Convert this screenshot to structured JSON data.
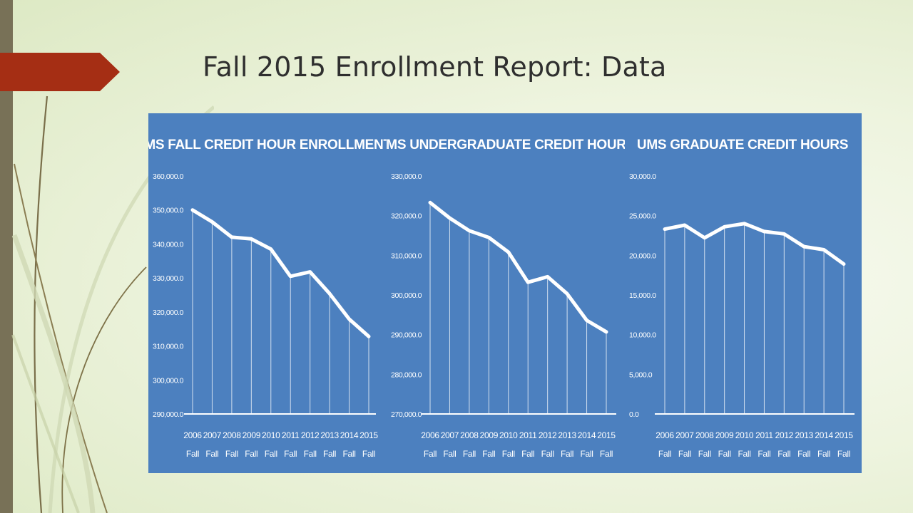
{
  "slide": {
    "title": "Fall 2015 Enrollment Report: Data"
  },
  "colors": {
    "accent": "#a52e14",
    "left_bar": "#787157",
    "panel_bg": "#4c80bf",
    "line": "#ffffff"
  },
  "chart_data": [
    {
      "type": "line",
      "title": "UMS FALL CREDIT HOUR ENROLLMENTS",
      "categories": [
        [
          "2006",
          "Fall"
        ],
        [
          "2007",
          "Fall"
        ],
        [
          "2008",
          "Fall"
        ],
        [
          "2009",
          "Fall"
        ],
        [
          "2010",
          "Fall"
        ],
        [
          "2011",
          "Fall"
        ],
        [
          "2012",
          "Fall"
        ],
        [
          "2013",
          "Fall"
        ],
        [
          "2014",
          "Fall"
        ],
        [
          "2015",
          "Fall"
        ]
      ],
      "values": [
        350000,
        346500,
        342000,
        341500,
        338500,
        330500,
        331800,
        325400,
        317900,
        312800
      ],
      "ylim": [
        290000,
        360000
      ],
      "yticks": [
        "360,000.0",
        "350,000.0",
        "340,000.0",
        "330,000.0",
        "320,000.0",
        "310,000.0",
        "300,000.0",
        "290,000.0"
      ],
      "drop_lines": true,
      "grid": false
    },
    {
      "type": "line",
      "title": "UMS UNDERGRADUATE CREDIT HOURS",
      "categories": [
        [
          "2006",
          "Fall"
        ],
        [
          "2007",
          "Fall"
        ],
        [
          "2008",
          "Fall"
        ],
        [
          "2009",
          "Fall"
        ],
        [
          "2010",
          "Fall"
        ],
        [
          "2011",
          "Fall"
        ],
        [
          "2012",
          "Fall"
        ],
        [
          "2013",
          "Fall"
        ],
        [
          "2014",
          "Fall"
        ],
        [
          "2015",
          "Fall"
        ]
      ],
      "values": [
        323300,
        319400,
        316200,
        314500,
        310800,
        303200,
        304600,
        300300,
        293600,
        290700
      ],
      "ylim": [
        270000,
        330000
      ],
      "yticks": [
        "330,000.0",
        "320,000.0",
        "310,000.0",
        "300,000.0",
        "290,000.0",
        "280,000.0",
        "270,000.0"
      ],
      "drop_lines": true,
      "grid": false
    },
    {
      "type": "line",
      "title": "UMS GRADUATE CREDIT HOURS",
      "categories": [
        [
          "2006",
          "Fall"
        ],
        [
          "2007",
          "Fall"
        ],
        [
          "2008",
          "Fall"
        ],
        [
          "2009",
          "Fall"
        ],
        [
          "2010",
          "Fall"
        ],
        [
          "2011",
          "Fall"
        ],
        [
          "2012",
          "Fall"
        ],
        [
          "2013",
          "Fall"
        ],
        [
          "2014",
          "Fall"
        ],
        [
          "2015",
          "Fall"
        ]
      ],
      "values": [
        23300,
        23800,
        22200,
        23600,
        24000,
        23000,
        22700,
        21100,
        20700,
        18900
      ],
      "ylim": [
        0,
        30000
      ],
      "yticks": [
        "30,000.0",
        "25,000.0",
        "20,000.0",
        "15,000.0",
        "10,000.0",
        "5,000.0",
        "0.0"
      ],
      "drop_lines": true,
      "grid": false
    }
  ]
}
